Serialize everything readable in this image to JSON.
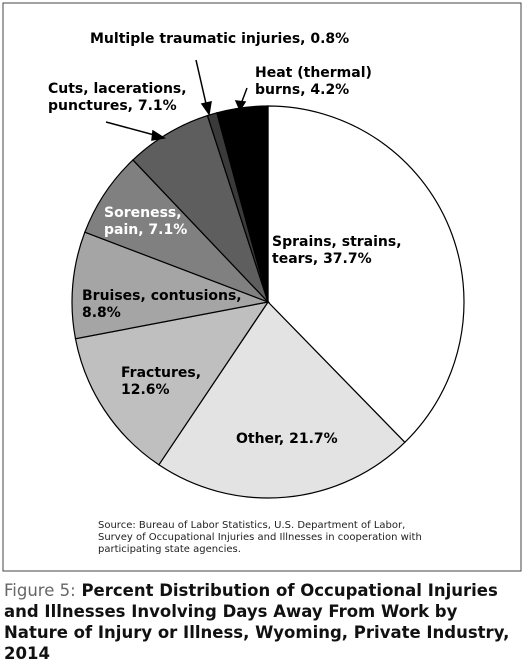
{
  "chart_data": {
    "type": "pie",
    "categories": [
      "Sprains, strains, tears",
      "Other",
      "Fractures",
      "Bruises, contusions",
      "Soreness, pain",
      "Cuts, lacerations, punctures",
      "Multiple traumatic injuries",
      "Heat (thermal) burns"
    ],
    "values": [
      37.7,
      21.7,
      12.6,
      8.8,
      7.1,
      7.1,
      0.8,
      4.2
    ],
    "labels": [
      [
        "Sprains, strains,",
        "tears, 37.7%"
      ],
      [
        "Other, 21.7%"
      ],
      [
        "Fractures,",
        "12.6%"
      ],
      [
        "Bruises, contusions,",
        "8.8%"
      ],
      [
        "Soreness,",
        "pain, 7.1%"
      ],
      [
        "Cuts, lacerations,",
        "punctures, 7.1%"
      ],
      [
        "Multiple traumatic injuries, 0.8%"
      ],
      [
        "Heat (thermal)",
        "burns, 4.2%"
      ]
    ],
    "colors": [
      "#ffffff",
      "#e3e3e3",
      "#bfbfbf",
      "#a5a5a5",
      "#808080",
      "#5e5e5e",
      "#3a3a3a",
      "#000000"
    ],
    "label_colors": [
      "#000000",
      "#000000",
      "#000000",
      "#000000",
      "#ffffff",
      "#000000",
      "#000000",
      "#000000"
    ],
    "source": "Source: Bureau of Labor Statistics, U.S. Department of Labor, Survey of Occupational Injuries and Illnesses in cooperation with participating state agencies.",
    "figure_label": "Figure 5:",
    "title": "Percent Distribution of Occupational Injuries and Illnesses Involving Days Away From Work by Nature of Injury or Illness, Wyoming, Private Industry, 2014"
  }
}
